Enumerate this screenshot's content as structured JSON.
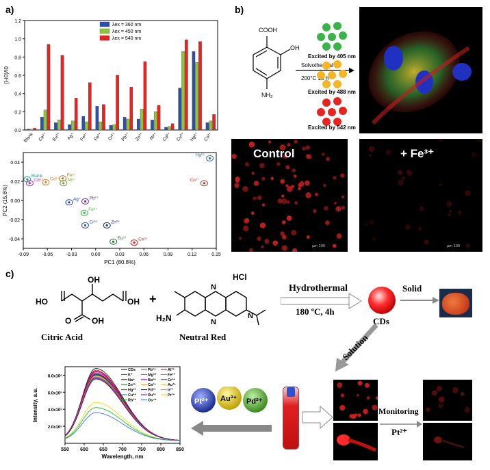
{
  "panels": {
    "a": "a)",
    "b": "b)",
    "c": "c)"
  },
  "chart_data": [
    {
      "type": "bar",
      "ylabel": "(I-I0)/I0",
      "ylim": [
        0,
        1.2
      ],
      "yticks": [
        "0.0",
        "0.2",
        "0.4",
        "0.6",
        "0.8",
        "1.0",
        "1.2"
      ],
      "categories": [
        "Blank",
        "Ce³⁺",
        "Eu³⁺",
        "Ag⁺",
        "Fe²⁺",
        "Fe³⁺",
        "Cr³⁺",
        "Pb²⁺",
        "Zn²⁺",
        "Ni²⁺",
        "Cd²⁺",
        "Cu²⁺",
        "Hg²⁺",
        "Co²⁺"
      ],
      "legend": "top-center",
      "series": [
        {
          "name": "λex = 360 nm",
          "color": "#2f4fa8",
          "values": [
            0.01,
            0.14,
            0.08,
            0.06,
            0.15,
            0.26,
            0.05,
            0.14,
            0.12,
            0.11,
            0.03,
            0.46,
            0.86,
            0.08
          ]
        },
        {
          "name": "λex = 450 nm",
          "color": "#8cc63f",
          "values": [
            0.01,
            0.22,
            0.11,
            0.1,
            0.09,
            0.09,
            0.06,
            0.12,
            0.23,
            0.2,
            0.04,
            0.86,
            0.74,
            0.1
          ]
        },
        {
          "name": "λex = 540 nm",
          "color": "#e52521",
          "values": [
            0.02,
            0.94,
            0.82,
            0.35,
            0.52,
            0.28,
            0.6,
            0.47,
            0.75,
            0.27,
            0.07,
            0.99,
            0.97,
            0.17
          ]
        }
      ]
    },
    {
      "type": "scatter",
      "xlabel": "PC1 (80.8%)",
      "ylabel": "PC2 (15.6%)",
      "xlim": [
        -0.09,
        0.15
      ],
      "ylim": [
        -0.05,
        0.05
      ],
      "xticks": [
        "-0.09",
        "-0.06",
        "-0.03",
        "0.00",
        "0.03",
        "0.06",
        "0.09",
        "0.12",
        "0.15"
      ],
      "yticks": [
        "0.04",
        "0.02",
        "0.00",
        "-0.02",
        "-0.04"
      ],
      "points": [
        {
          "label": "Blank",
          "x": -0.085,
          "y": 0.022,
          "color": "#2a8c8c"
        },
        {
          "label": "Cd²⁺",
          "x": -0.082,
          "y": 0.018,
          "color": "#a040a0"
        },
        {
          "label": "Co²⁺",
          "x": -0.062,
          "y": 0.019,
          "color": "#e08020"
        },
        {
          "label": "Fe²⁺",
          "x": -0.041,
          "y": 0.023,
          "color": "#b07020"
        },
        {
          "label": "Ni²⁺",
          "x": -0.04,
          "y": 0.018,
          "color": "#70a030"
        },
        {
          "label": "Ag⁺",
          "x": -0.033,
          "y": -0.002,
          "color": "#2040c0"
        },
        {
          "label": "Pb²⁺",
          "x": -0.013,
          "y": -0.001,
          "color": "#7030a0"
        },
        {
          "label": "Fe³⁺",
          "x": -0.014,
          "y": -0.013,
          "color": "#40b040"
        },
        {
          "label": "Cr³⁺",
          "x": -0.013,
          "y": -0.026,
          "color": "#3050b0"
        },
        {
          "label": "Zn²⁺",
          "x": 0.014,
          "y": -0.026,
          "color": "#203070"
        },
        {
          "label": "Eu³⁺",
          "x": 0.022,
          "y": -0.043,
          "color": "#207030"
        },
        {
          "label": "Ce³⁺",
          "x": 0.048,
          "y": -0.044,
          "color": "#d02020"
        },
        {
          "label": "Cu²⁺",
          "x": 0.135,
          "y": 0.018,
          "color": "#c03020"
        },
        {
          "label": "Hg²⁺",
          "x": 0.142,
          "y": 0.044,
          "color": "#3070b0"
        }
      ]
    },
    {
      "type": "line",
      "xlabel": "Wavelength, nm",
      "ylabel": "Intensity, a.u.",
      "xlim": [
        550,
        850
      ],
      "ylim": [
        0,
        900000
      ],
      "xticks": [
        "550",
        "600",
        "650",
        "700",
        "750",
        "800",
        "850"
      ],
      "yticks": [
        "2.0x10⁵",
        "4.0x10⁵",
        "6.0x10⁵",
        "8.0x10⁵"
      ],
      "legend": "top-right",
      "legend_entries": [
        "CDs",
        "Pb²⁺",
        "Al³⁺",
        "K⁺",
        "Mg²⁺",
        "Fe³⁺",
        "Na⁺",
        "Ba²⁺",
        "Cr³⁺",
        "Zn²⁺",
        "Ca²⁺",
        "Au³⁺",
        "Hg²⁺",
        "Pd²⁺",
        "Ir³⁺",
        "Cu²⁺",
        "Ru³⁺",
        "Pr³⁺",
        "Rh³⁺",
        "Os⁴⁺"
      ],
      "series_peaks": [
        850000,
        830000,
        820000,
        810000,
        800000,
        790000,
        785000,
        780000,
        775000,
        770000,
        765000,
        760000,
        750000,
        740000,
        735000,
        730000,
        725000,
        450000,
        390000,
        330000
      ],
      "series_colors": [
        "#000000",
        "#7030a0",
        "#c00000",
        "#ff0000",
        "#ff00ff",
        "#00a0ff",
        "#202020",
        "#8000ff",
        "#404040",
        "#008000",
        "#ff8000",
        "#e0c000",
        "#c000c0",
        "#0000ff",
        "#a0a000",
        "#008080",
        "#800080",
        "#e0e000",
        "#00c000",
        "#2060ff"
      ]
    }
  ],
  "b_diagram": {
    "cooh": "COOH",
    "oh": "OH",
    "nh2": "NH₂",
    "solvothermal": "Solvothermal",
    "conditions": "200°C   18 h",
    "excite": [
      "Excited by 405 nm",
      "Excited by 488 nm",
      "Excited by 542 nm"
    ],
    "control": "Control",
    "plus_fe": "+ Fe³⁺",
    "scale": "μm 100"
  },
  "c_diagram": {
    "hcl": "HCl",
    "citric": "Citric Acid",
    "neutral": "Neutral Red",
    "hydrothermal": "Hydrothermal",
    "hyd_cond": "180 ºC, 4h",
    "solid": "Solid",
    "cds": "CDs",
    "solution": "Solution",
    "monitoring": "Monitoring",
    "pt": "Pt²⁺",
    "ions": [
      "Pt²⁺",
      "Au³⁺",
      "Pd²⁺"
    ],
    "ho": "HO",
    "oh": "OH",
    "oh2": "OH",
    "o": "O",
    "h2n": "H₂N",
    "n": "N"
  }
}
